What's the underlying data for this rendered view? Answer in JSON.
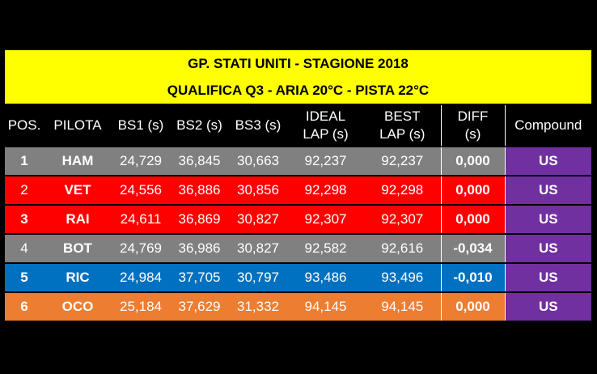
{
  "title": {
    "line1": "GP. STATI UNITI - STAGIONE 2018",
    "line2": "QUALIFICA Q3 - ARIA 20°C - PISTA 22°C"
  },
  "headers": {
    "pos": "POS.",
    "pilota": "PILOTA",
    "bs1": "BS1 (s)",
    "bs2": "BS2 (s)",
    "bs3": "BS3 (s)",
    "ideal_a": "IDEAL",
    "ideal_b": "LAP (s)",
    "best_a": "BEST",
    "best_b": "LAP (s)",
    "diff_a": "DIFF",
    "diff_b": "(s)",
    "compound": "Compound"
  },
  "rows": [
    {
      "pos": "1",
      "pilota": "HAM",
      "bs1": "24,729",
      "bs2": "36,845",
      "bs3": "30,663",
      "ideal": "92,237",
      "best": "92,237",
      "diff": "0,000",
      "compound": "US"
    },
    {
      "pos": "2",
      "pilota": "VET",
      "bs1": "24,556",
      "bs2": "36,886",
      "bs3": "30,856",
      "ideal": "92,298",
      "best": "92,298",
      "diff": "0,000",
      "compound": "US"
    },
    {
      "pos": "3",
      "pilota": "RAI",
      "bs1": "24,611",
      "bs2": "36,869",
      "bs3": "30,827",
      "ideal": "92,307",
      "best": "92,307",
      "diff": "0,000",
      "compound": "US"
    },
    {
      "pos": "4",
      "pilota": "BOT",
      "bs1": "24,769",
      "bs2": "36,986",
      "bs3": "30,827",
      "ideal": "92,582",
      "best": "92,616",
      "diff": "-0,034",
      "compound": "US"
    },
    {
      "pos": "5",
      "pilota": "RIC",
      "bs1": "24,984",
      "bs2": "37,705",
      "bs3": "30,797",
      "ideal": "93,486",
      "best": "93,496",
      "diff": "-0,010",
      "compound": "US"
    },
    {
      "pos": "6",
      "pilota": "OCO",
      "bs1": "25,184",
      "bs2": "37,629",
      "bs3": "31,332",
      "ideal": "94,145",
      "best": "94,145",
      "diff": "0,000",
      "compound": "US"
    }
  ],
  "colors": {
    "title_bg": "#ffff00",
    "row_gray": "#808080",
    "row_red": "#ff0000",
    "row_blue": "#0070c0",
    "row_orange": "#ed7d31",
    "compound_purple": "#7030a0"
  }
}
